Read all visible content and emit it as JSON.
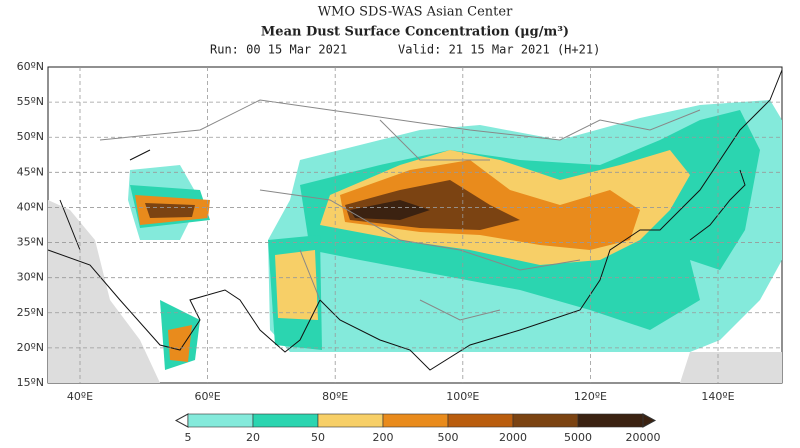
{
  "header": {
    "line1": "WMO SDS-WAS Asian Center",
    "line2": "Mean Dust Surface Concentration (μg/m³)",
    "run": "Run: 00 15 Mar 2021",
    "valid": "Valid: 21 15 Mar 2021 (H+21)"
  },
  "lat_labels": [
    "60ºN",
    "55ºN",
    "50ºN",
    "45ºN",
    "40ºN",
    "35ºN",
    "30ºN",
    "25ºN",
    "20ºN",
    "15ºN"
  ],
  "lon_labels": [
    "40ºE",
    "60ºE",
    "80ºE",
    "100ºE",
    "120ºE",
    "140ºE"
  ],
  "legend": {
    "levels": [
      5,
      20,
      50,
      200,
      500,
      2000,
      5000,
      20000
    ],
    "colors": [
      "#84eadb",
      "#2bd5b0",
      "#f7cf67",
      "#e98b1c",
      "#b95d0e",
      "#7b4312",
      "#3b2211"
    ]
  }
}
